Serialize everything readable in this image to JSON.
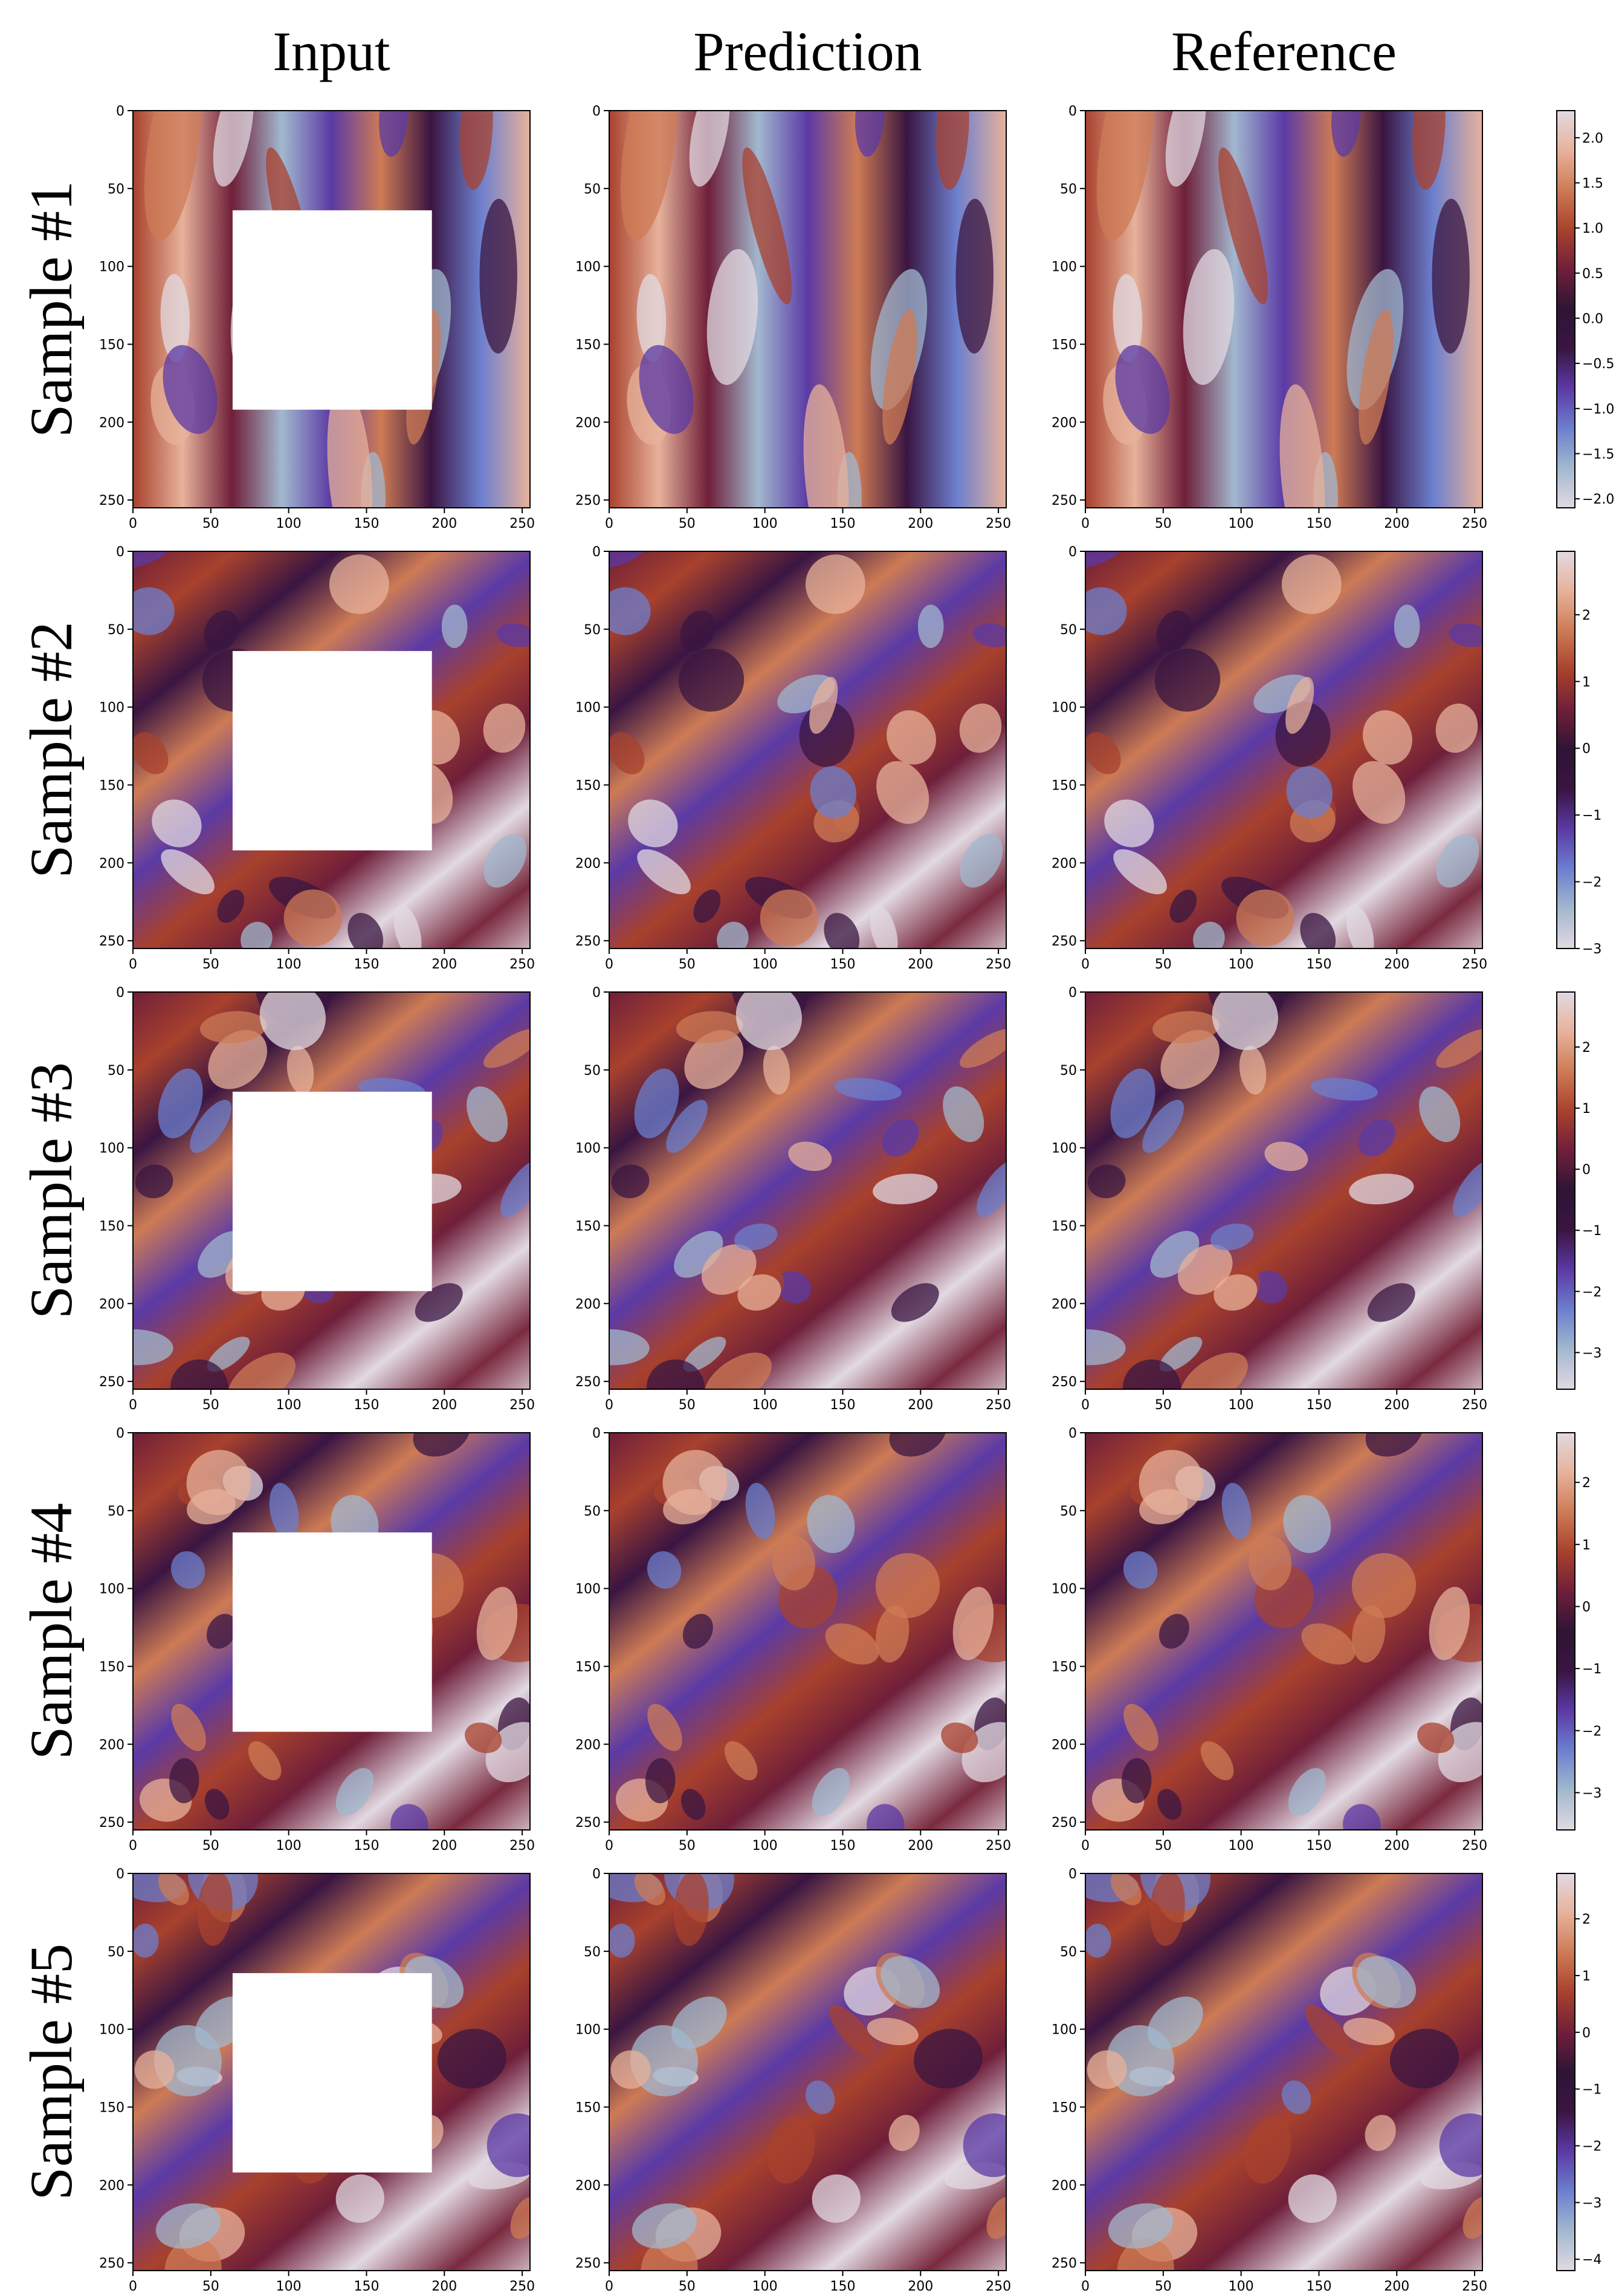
{
  "chart_data": {
    "type": "heatmap",
    "columns": [
      "Input",
      "Prediction",
      "Reference"
    ],
    "rows": [
      "Sample #1",
      "Sample #2",
      "Sample #3",
      "Sample #4",
      "Sample #5"
    ],
    "xlim": [
      0,
      255
    ],
    "ylim": [
      255,
      0
    ],
    "xticks": [
      "0",
      "50",
      "100",
      "150",
      "200",
      "250"
    ],
    "yticks": [
      "0",
      "50",
      "100",
      "150",
      "200",
      "250"
    ],
    "mask_region": {
      "x": [
        64,
        192
      ],
      "y": [
        64,
        192
      ]
    },
    "colormap": "twilight_shifted",
    "colormap_stops": [
      "#e2d9e2",
      "#a2b8cf",
      "#6c7fce",
      "#5b3aa5",
      "#3a1542",
      "#2f1436",
      "#6f1f3a",
      "#a8412d",
      "#cd7b55",
      "#e7b29b",
      "#e2d9e2"
    ],
    "colorbars": [
      {
        "min": -2.1,
        "max": 2.3,
        "ticks": [
          "2.0",
          "1.5",
          "1.0",
          "0.5",
          "0.0",
          "−0.5",
          "−1.0",
          "−1.5",
          "−2.0"
        ],
        "values": [
          2.0,
          1.5,
          1.0,
          0.5,
          0.0,
          -0.5,
          -1.0,
          -1.5,
          -2.0
        ]
      },
      {
        "min": -3.0,
        "max": 2.95,
        "ticks": [
          "2",
          "1",
          "0",
          "−1",
          "−2",
          "−3"
        ],
        "values": [
          2,
          1,
          0,
          -1,
          -2,
          -3
        ]
      },
      {
        "min": -3.6,
        "max": 2.9,
        "ticks": [
          "2",
          "1",
          "0",
          "−1",
          "−2",
          "−3"
        ],
        "values": [
          2,
          1,
          0,
          -1,
          -2,
          -3
        ]
      },
      {
        "min": -3.6,
        "max": 2.8,
        "ticks": [
          "2",
          "1",
          "0",
          "−1",
          "−2",
          "−3"
        ],
        "values": [
          2,
          1,
          0,
          -1,
          -2,
          -3
        ]
      },
      {
        "min": -4.2,
        "max": 2.8,
        "ticks": [
          "2",
          "1",
          "0",
          "−1",
          "−2",
          "−3",
          "−4"
        ],
        "values": [
          2,
          1,
          0,
          -1,
          -2,
          -3,
          -4
        ]
      }
    ]
  }
}
